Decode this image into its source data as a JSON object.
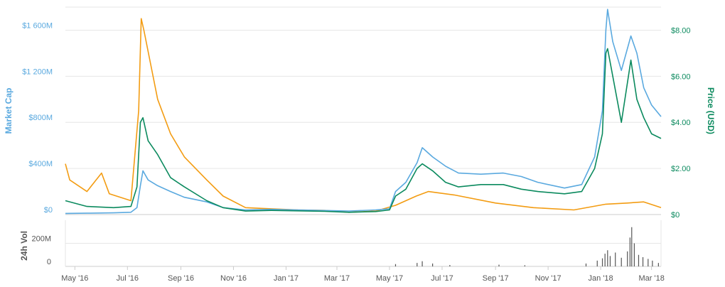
{
  "chart_data": {
    "type": "line",
    "title": "",
    "x_range": [
      "2016-04-20",
      "2018-03-12"
    ],
    "x_tick_labels": [
      "May '16",
      "Jul '16",
      "Sep '16",
      "Nov '16",
      "Jan '17",
      "Mar '17",
      "May '17",
      "Jul '17",
      "Sep '17",
      "Nov '17",
      "Jan '18",
      "Mar '18"
    ],
    "grid": true,
    "legend": "none",
    "axes": {
      "left": {
        "label": "Market Cap",
        "range": [
          0,
          1800000000
        ],
        "ticks": [
          0,
          400000000,
          800000000,
          1200000000,
          1600000000
        ],
        "tick_labels": [
          "$0",
          "$400M",
          "$800M",
          "$1 200M",
          "$1 600M"
        ],
        "color": "#5aa9df"
      },
      "right": {
        "label": "Price (USD)",
        "range": [
          0,
          9
        ],
        "ticks": [
          0,
          2,
          4,
          6,
          8
        ],
        "tick_labels": [
          "$0",
          "$2.00",
          "$4.00",
          "$6.00",
          "$8.00"
        ],
        "color": "#0b8a5e"
      },
      "volume": {
        "label": "24h Vol",
        "range": [
          0,
          400000000
        ],
        "ticks": [
          0,
          200000000
        ],
        "tick_labels": [
          "0",
          "200M"
        ],
        "color": "#555555"
      }
    },
    "series": [
      {
        "key": "market_cap",
        "axis": "left",
        "color": "#5aa9df",
        "points": [
          [
            "2016-04-20",
            10000000
          ],
          [
            "2016-05-15",
            12000000
          ],
          [
            "2016-06-15",
            15000000
          ],
          [
            "2016-07-05",
            20000000
          ],
          [
            "2016-07-12",
            60000000
          ],
          [
            "2016-07-16",
            250000000
          ],
          [
            "2016-07-19",
            380000000
          ],
          [
            "2016-07-25",
            300000000
          ],
          [
            "2016-08-05",
            250000000
          ],
          [
            "2016-08-20",
            200000000
          ],
          [
            "2016-09-05",
            150000000
          ],
          [
            "2016-10-01",
            110000000
          ],
          [
            "2016-10-20",
            60000000
          ],
          [
            "2016-11-15",
            40000000
          ],
          [
            "2016-12-15",
            45000000
          ],
          [
            "2017-01-15",
            40000000
          ],
          [
            "2017-02-15",
            35000000
          ],
          [
            "2017-03-15",
            30000000
          ],
          [
            "2017-04-15",
            40000000
          ],
          [
            "2017-05-01",
            50000000
          ],
          [
            "2017-05-08",
            200000000
          ],
          [
            "2017-05-20",
            280000000
          ],
          [
            "2017-06-02",
            450000000
          ],
          [
            "2017-06-08",
            580000000
          ],
          [
            "2017-06-20",
            500000000
          ],
          [
            "2017-07-05",
            420000000
          ],
          [
            "2017-07-20",
            360000000
          ],
          [
            "2017-08-15",
            350000000
          ],
          [
            "2017-09-10",
            360000000
          ],
          [
            "2017-10-01",
            330000000
          ],
          [
            "2017-10-20",
            280000000
          ],
          [
            "2017-11-20",
            230000000
          ],
          [
            "2017-12-10",
            260000000
          ],
          [
            "2017-12-25",
            500000000
          ],
          [
            "2018-01-03",
            900000000
          ],
          [
            "2018-01-07",
            1600000000
          ],
          [
            "2018-01-09",
            1780000000
          ],
          [
            "2018-01-15",
            1500000000
          ],
          [
            "2018-01-25",
            1250000000
          ],
          [
            "2018-02-05",
            1550000000
          ],
          [
            "2018-02-12",
            1400000000
          ],
          [
            "2018-02-20",
            1100000000
          ],
          [
            "2018-03-01",
            950000000
          ],
          [
            "2018-03-12",
            850000000
          ]
        ]
      },
      {
        "key": "price",
        "axis": "right",
        "color": "#0b8a5e",
        "points": [
          [
            "2016-04-20",
            0.6
          ],
          [
            "2016-05-15",
            0.35
          ],
          [
            "2016-06-15",
            0.3
          ],
          [
            "2016-07-05",
            0.35
          ],
          [
            "2016-07-12",
            1.2
          ],
          [
            "2016-07-16",
            4.0
          ],
          [
            "2016-07-19",
            4.2
          ],
          [
            "2016-07-25",
            3.2
          ],
          [
            "2016-08-05",
            2.6
          ],
          [
            "2016-08-20",
            1.6
          ],
          [
            "2016-09-05",
            1.2
          ],
          [
            "2016-10-01",
            0.6
          ],
          [
            "2016-10-20",
            0.3
          ],
          [
            "2016-11-15",
            0.15
          ],
          [
            "2016-12-15",
            0.18
          ],
          [
            "2017-01-15",
            0.16
          ],
          [
            "2017-02-15",
            0.14
          ],
          [
            "2017-03-15",
            0.1
          ],
          [
            "2017-04-15",
            0.13
          ],
          [
            "2017-05-01",
            0.2
          ],
          [
            "2017-05-08",
            0.8
          ],
          [
            "2017-05-20",
            1.1
          ],
          [
            "2017-06-02",
            2.0
          ],
          [
            "2017-06-08",
            2.2
          ],
          [
            "2017-06-20",
            1.9
          ],
          [
            "2017-07-05",
            1.4
          ],
          [
            "2017-07-20",
            1.2
          ],
          [
            "2017-08-15",
            1.3
          ],
          [
            "2017-09-10",
            1.3
          ],
          [
            "2017-10-01",
            1.1
          ],
          [
            "2017-10-20",
            1.0
          ],
          [
            "2017-11-20",
            0.9
          ],
          [
            "2017-12-10",
            1.0
          ],
          [
            "2017-12-25",
            2.0
          ],
          [
            "2018-01-03",
            3.5
          ],
          [
            "2018-01-07",
            7.0
          ],
          [
            "2018-01-09",
            7.2
          ],
          [
            "2018-01-15",
            6.0
          ],
          [
            "2018-01-25",
            4.0
          ],
          [
            "2018-02-05",
            6.7
          ],
          [
            "2018-02-12",
            5.0
          ],
          [
            "2018-02-20",
            4.2
          ],
          [
            "2018-03-01",
            3.5
          ],
          [
            "2018-03-12",
            3.3
          ]
        ]
      },
      {
        "key": "price_alt",
        "axis": "right",
        "color": "#f39c12",
        "points": [
          [
            "2016-04-20",
            2.2
          ],
          [
            "2016-04-25",
            1.5
          ],
          [
            "2016-05-15",
            1.0
          ],
          [
            "2016-06-01",
            1.8
          ],
          [
            "2016-06-10",
            0.9
          ],
          [
            "2016-07-05",
            0.6
          ],
          [
            "2016-07-14",
            4.5
          ],
          [
            "2016-07-17",
            8.5
          ],
          [
            "2016-07-20",
            8.0
          ],
          [
            "2016-07-28",
            6.5
          ],
          [
            "2016-08-05",
            5.0
          ],
          [
            "2016-08-20",
            3.5
          ],
          [
            "2016-09-05",
            2.5
          ],
          [
            "2016-10-01",
            1.5
          ],
          [
            "2016-10-20",
            0.8
          ],
          [
            "2016-11-15",
            0.3
          ],
          [
            "2016-12-15",
            0.25
          ],
          [
            "2017-01-15",
            0.2
          ],
          [
            "2017-02-15",
            0.18
          ],
          [
            "2017-03-15",
            0.1
          ],
          [
            "2017-04-15",
            0.15
          ],
          [
            "2017-05-08",
            0.4
          ],
          [
            "2017-06-01",
            0.8
          ],
          [
            "2017-06-15",
            1.0
          ],
          [
            "2017-07-15",
            0.85
          ],
          [
            "2017-09-01",
            0.5
          ],
          [
            "2017-10-15",
            0.3
          ],
          [
            "2017-12-01",
            0.2
          ],
          [
            "2018-01-07",
            0.45
          ],
          [
            "2018-02-01",
            0.5
          ],
          [
            "2018-02-20",
            0.55
          ],
          [
            "2018-03-12",
            0.3
          ]
        ]
      }
    ],
    "volume_spikes": [
      [
        "2017-05-08",
        20000000
      ],
      [
        "2017-06-02",
        30000000
      ],
      [
        "2017-06-08",
        45000000
      ],
      [
        "2017-06-20",
        25000000
      ],
      [
        "2017-07-10",
        12000000
      ],
      [
        "2017-09-05",
        15000000
      ],
      [
        "2017-10-05",
        10000000
      ],
      [
        "2017-12-15",
        25000000
      ],
      [
        "2017-12-28",
        50000000
      ],
      [
        "2018-01-03",
        70000000
      ],
      [
        "2018-01-06",
        110000000
      ],
      [
        "2018-01-09",
        140000000
      ],
      [
        "2018-01-12",
        90000000
      ],
      [
        "2018-01-18",
        120000000
      ],
      [
        "2018-01-25",
        75000000
      ],
      [
        "2018-02-01",
        130000000
      ],
      [
        "2018-02-04",
        250000000
      ],
      [
        "2018-02-06",
        340000000
      ],
      [
        "2018-02-09",
        200000000
      ],
      [
        "2018-02-14",
        100000000
      ],
      [
        "2018-02-19",
        80000000
      ],
      [
        "2018-02-25",
        65000000
      ],
      [
        "2018-03-02",
        50000000
      ],
      [
        "2018-03-09",
        30000000
      ]
    ]
  }
}
